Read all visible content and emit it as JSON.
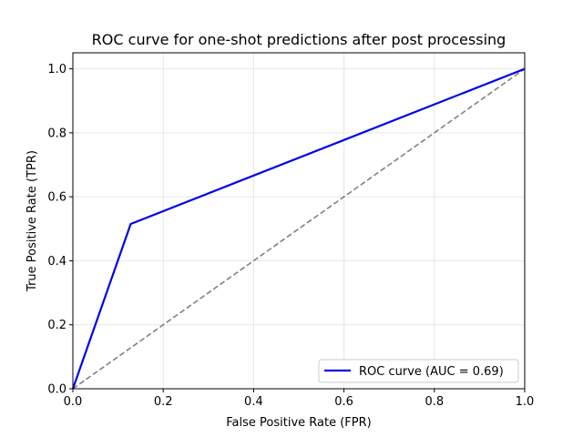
{
  "chart_data": {
    "type": "line",
    "title": "ROC curve for one-shot predictions after post processing",
    "xlabel": "False Positive Rate (FPR)",
    "ylabel": "True Positive Rate (TPR)",
    "xlim": [
      0,
      1
    ],
    "ylim": [
      0,
      1.05
    ],
    "xticks": [
      0.0,
      0.2,
      0.4,
      0.6,
      0.8,
      1.0
    ],
    "yticks": [
      0.0,
      0.2,
      0.4,
      0.6,
      0.8,
      1.0
    ],
    "xtick_labels": [
      "0.0",
      "0.2",
      "0.4",
      "0.6",
      "0.8",
      "1.0"
    ],
    "ytick_labels": [
      "0.0",
      "0.2",
      "0.4",
      "0.6",
      "0.8",
      "1.0"
    ],
    "grid": true,
    "legend_position": "lower-right",
    "series": [
      {
        "name": "ROC curve (AUC = 0.69)",
        "color": "#0000ee",
        "style": "solid",
        "points": [
          [
            0.0,
            0.0
          ],
          [
            0.128,
            0.515
          ],
          [
            1.0,
            1.0
          ]
        ]
      },
      {
        "color": "#808080",
        "style": "dashed",
        "points": [
          [
            0.0,
            0.0
          ],
          [
            1.0,
            1.0
          ]
        ]
      }
    ]
  }
}
